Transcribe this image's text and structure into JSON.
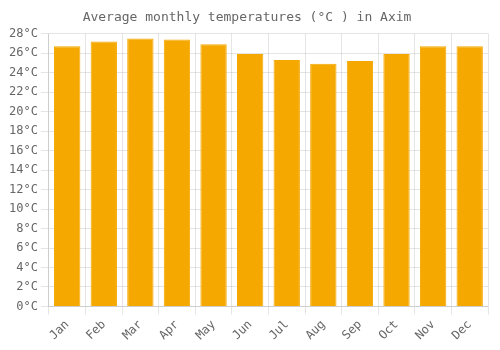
{
  "chart_data": {
    "type": "bar",
    "title": "Average monthly temperatures (°C ) in Axim",
    "categories": [
      "Jan",
      "Feb",
      "Mar",
      "Apr",
      "May",
      "Jun",
      "Jul",
      "Aug",
      "Sep",
      "Oct",
      "Nov",
      "Dec"
    ],
    "values": [
      26.7,
      27.2,
      27.5,
      27.4,
      26.9,
      25.9,
      25.3,
      24.9,
      25.2,
      25.9,
      26.7,
      26.7
    ],
    "color": "#F5A800",
    "ylim": [
      0,
      28
    ],
    "yticks": [
      {
        "value": 0,
        "label": "0°C"
      },
      {
        "value": 2,
        "label": "2°C"
      },
      {
        "value": 4,
        "label": "4°C"
      },
      {
        "value": 6,
        "label": "6°C"
      },
      {
        "value": 8,
        "label": "8°C"
      },
      {
        "value": 10,
        "label": "10°C"
      },
      {
        "value": 12,
        "label": "12°C"
      },
      {
        "value": 14,
        "label": "14°C"
      },
      {
        "value": 16,
        "label": "16°C"
      },
      {
        "value": 18,
        "label": "18°C"
      },
      {
        "value": 20,
        "label": "20°C"
      },
      {
        "value": 22,
        "label": "22°C"
      },
      {
        "value": 24,
        "label": "24°C"
      },
      {
        "value": 26,
        "label": "26°C"
      },
      {
        "value": 28,
        "label": "28°C"
      }
    ],
    "grid": true
  }
}
